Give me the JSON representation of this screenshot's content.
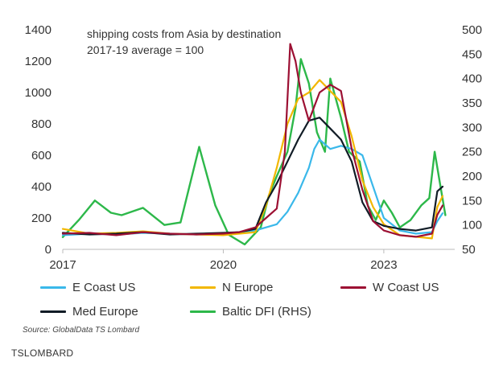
{
  "chart_data": {
    "type": "line",
    "annotation_lines": [
      "shipping costs from Asia by destination",
      "2017-19 average = 100"
    ],
    "x_ticks": [
      2017,
      2020,
      2023
    ],
    "xlim": [
      2017,
      2024.25
    ],
    "left_axis": {
      "ticks": [
        0,
        200,
        400,
        600,
        800,
        1000,
        1200,
        1400
      ],
      "ylim": [
        0,
        1400
      ]
    },
    "right_axis": {
      "ticks": [
        50,
        100,
        150,
        200,
        250,
        300,
        350,
        400,
        450,
        500
      ],
      "ylim": [
        50,
        500
      ]
    },
    "grid": false,
    "legend_position": "bottom",
    "series": [
      {
        "name": "E Coast US",
        "axis": "left",
        "color": "#3ab8ea",
        "x": [
          2017,
          2017.5,
          2018,
          2018.5,
          2019,
          2019.5,
          2020,
          2020.3,
          2020.6,
          2020.8,
          2021.0,
          2021.2,
          2021.4,
          2021.6,
          2021.7,
          2021.8,
          2022.0,
          2022.2,
          2022.4,
          2022.6,
          2022.8,
          2023.0,
          2023.3,
          2023.6,
          2023.9,
          2024.0,
          2024.1
        ],
        "values": [
          90,
          100,
          95,
          105,
          100,
          95,
          100,
          110,
          120,
          140,
          160,
          240,
          360,
          520,
          640,
          700,
          640,
          660,
          640,
          600,
          400,
          200,
          120,
          100,
          110,
          180,
          230
        ]
      },
      {
        "name": "N Europe",
        "axis": "left",
        "color": "#f2b700",
        "x": [
          2017,
          2017.5,
          2018,
          2018.5,
          2019,
          2019.5,
          2020,
          2020.3,
          2020.6,
          2020.8,
          2021.0,
          2021.2,
          2021.4,
          2021.6,
          2021.8,
          2022.0,
          2022.2,
          2022.4,
          2022.6,
          2022.8,
          2023.0,
          2023.3,
          2023.6,
          2023.9,
          2024.0,
          2024.1
        ],
        "values": [
          130,
          100,
          105,
          115,
          100,
          95,
          90,
          100,
          110,
          280,
          520,
          800,
          960,
          1000,
          1080,
          1010,
          940,
          720,
          440,
          270,
          160,
          90,
          80,
          70,
          270,
          340
        ]
      },
      {
        "name": "W Coast US",
        "axis": "left",
        "color": "#9c1033",
        "x": [
          2017,
          2017.5,
          2018,
          2018.5,
          2019,
          2019.5,
          2020,
          2020.3,
          2020.6,
          2020.8,
          2021.0,
          2021.15,
          2021.25,
          2021.35,
          2021.45,
          2021.6,
          2021.8,
          2022.0,
          2022.2,
          2022.4,
          2022.6,
          2022.8,
          2023.0,
          2023.3,
          2023.6,
          2023.9,
          2024.0,
          2024.1
        ],
        "values": [
          100,
          105,
          90,
          110,
          100,
          95,
          100,
          110,
          140,
          200,
          260,
          620,
          1310,
          1200,
          1000,
          820,
          1000,
          1050,
          1010,
          640,
          380,
          180,
          120,
          90,
          80,
          100,
          220,
          280
        ]
      },
      {
        "name": "Med Europe",
        "axis": "left",
        "color": "#111c26",
        "x": [
          2017,
          2017.5,
          2018,
          2018.5,
          2019,
          2019.5,
          2020,
          2020.3,
          2020.6,
          2020.8,
          2021.0,
          2021.2,
          2021.4,
          2021.6,
          2021.8,
          2022.0,
          2022.2,
          2022.4,
          2022.6,
          2022.8,
          2023.0,
          2023.3,
          2023.6,
          2023.9,
          2024.0,
          2024.1
        ],
        "values": [
          105,
          95,
          100,
          110,
          95,
          100,
          105,
          110,
          130,
          300,
          420,
          560,
          700,
          820,
          840,
          770,
          700,
          560,
          300,
          180,
          150,
          130,
          120,
          140,
          370,
          400
        ]
      },
      {
        "name": "Baltic DFI (RHS)",
        "axis": "right",
        "color": "#2db84a",
        "x": [
          2017,
          2017.3,
          2017.6,
          2017.9,
          2018.1,
          2018.5,
          2018.9,
          2019.2,
          2019.55,
          2019.7,
          2019.85,
          2020.1,
          2020.4,
          2020.7,
          2020.85,
          2021.0,
          2021.2,
          2021.35,
          2021.45,
          2021.6,
          2021.75,
          2021.9,
          2022.0,
          2022.2,
          2022.35,
          2022.55,
          2022.7,
          2022.85,
          2023.0,
          2023.15,
          2023.3,
          2023.5,
          2023.7,
          2023.85,
          2023.95,
          2024.05,
          2024.15
        ],
        "values": [
          75,
          110,
          150,
          125,
          120,
          135,
          100,
          105,
          260,
          200,
          140,
          80,
          60,
          95,
          160,
          200,
          250,
          340,
          440,
          390,
          290,
          250,
          400,
          320,
          250,
          230,
          140,
          110,
          150,
          125,
          95,
          110,
          140,
          155,
          250,
          185,
          120
        ]
      }
    ]
  },
  "legend": [
    {
      "label": "E Coast US",
      "color": "#3ab8ea"
    },
    {
      "label": "N Europe",
      "color": "#f2b700"
    },
    {
      "label": "W Coast US",
      "color": "#9c1033"
    },
    {
      "label": "Med Europe",
      "color": "#111c26"
    },
    {
      "label": "Baltic DFI (RHS)",
      "color": "#2db84a"
    }
  ],
  "source": "Source: GlobalData TS Lombard",
  "brand": "TSLOMBARD"
}
